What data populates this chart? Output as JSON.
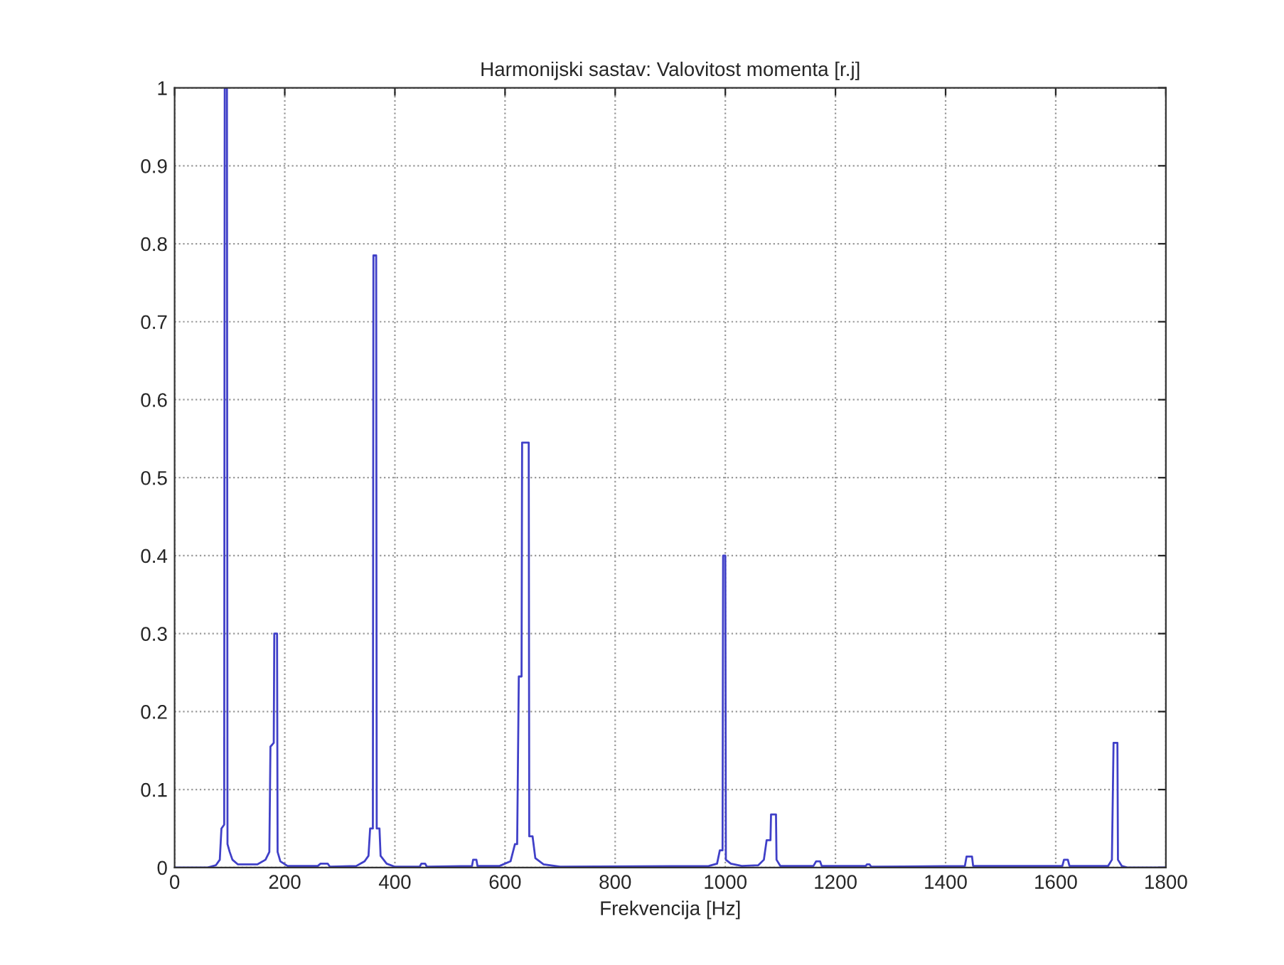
{
  "chart_data": {
    "type": "line",
    "title": "Harmonijski sastav: Valovitost momenta [r.j]",
    "xlabel": "Frekvencija [Hz]",
    "xlim": [
      0,
      1800
    ],
    "xticks": [
      0,
      200,
      400,
      600,
      800,
      1000,
      1200,
      1400,
      1600,
      1800
    ],
    "ylim": [
      0,
      1
    ],
    "yticks": [
      0,
      0.1,
      0.2,
      0.3,
      0.4,
      0.5,
      0.6,
      0.7,
      0.8,
      0.9,
      1
    ],
    "grid": true,
    "line_style": "solid",
    "marker": "none",
    "series": [
      {
        "color": "#4040c8",
        "x": [
          0,
          60,
          75,
          82,
          85,
          90,
          91,
          95,
          96,
          100,
          105,
          115,
          150,
          165,
          172,
          174,
          180,
          181,
          186,
          187,
          192,
          205,
          260,
          265,
          278,
          282,
          330,
          345,
          352,
          355,
          360,
          361,
          366,
          367,
          372,
          374,
          385,
          400,
          445,
          448,
          455,
          458,
          540,
          542,
          548,
          550,
          590,
          610,
          618,
          622,
          625,
          630,
          631,
          643,
          644,
          650,
          655,
          670,
          700,
          970,
          985,
          990,
          995,
          996,
          1000,
          1001,
          1010,
          1030,
          1060,
          1070,
          1075,
          1082,
          1083,
          1092,
          1093,
          1100,
          1160,
          1165,
          1172,
          1175,
          1255,
          1257,
          1262,
          1265,
          1435,
          1438,
          1448,
          1450,
          1612,
          1615,
          1622,
          1625,
          1695,
          1702,
          1705,
          1712,
          1713,
          1720,
          1730,
          1800
        ],
        "values": [
          0,
          0,
          0.003,
          0.01,
          0.05,
          0.055,
          1.0,
          1.0,
          0.03,
          0.02,
          0.01,
          0.004,
          0.004,
          0.01,
          0.02,
          0.155,
          0.16,
          0.3,
          0.3,
          0.02,
          0.008,
          0.002,
          0.002,
          0.005,
          0.005,
          0.001,
          0.002,
          0.008,
          0.015,
          0.05,
          0.05,
          0.785,
          0.785,
          0.05,
          0.05,
          0.015,
          0.005,
          0.001,
          0.001,
          0.005,
          0.005,
          0.001,
          0.002,
          0.01,
          0.01,
          0.002,
          0.002,
          0.008,
          0.03,
          0.03,
          0.245,
          0.245,
          0.545,
          0.545,
          0.04,
          0.04,
          0.012,
          0.004,
          0.001,
          0.002,
          0.005,
          0.022,
          0.022,
          0.4,
          0.4,
          0.01,
          0.005,
          0.002,
          0.003,
          0.01,
          0.035,
          0.035,
          0.068,
          0.068,
          0.01,
          0.002,
          0.002,
          0.008,
          0.008,
          0.002,
          0.002,
          0.004,
          0.004,
          0.001,
          0.002,
          0.014,
          0.014,
          0.002,
          0.002,
          0.01,
          0.01,
          0.002,
          0.002,
          0.01,
          0.16,
          0.16,
          0.01,
          0.002,
          0,
          0
        ]
      }
    ]
  }
}
